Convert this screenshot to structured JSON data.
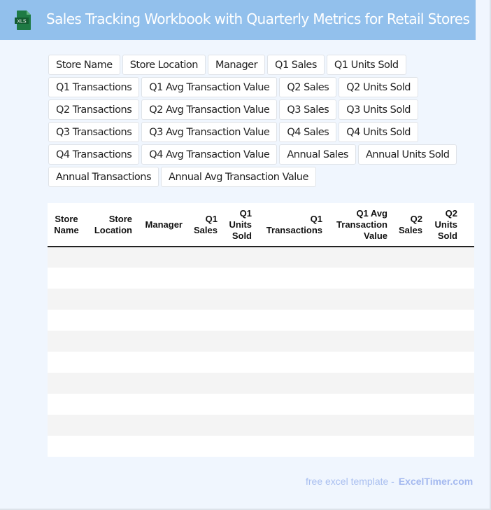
{
  "header": {
    "title": "Sales Tracking Workbook with Quarterly Metrics for Retail Stores",
    "icon": "xls-file-icon",
    "icon_label": "XLS",
    "color": "#92c0ec"
  },
  "fields": [
    "Store Name",
    "Store Location",
    "Manager",
    "Q1 Sales",
    "Q1 Units Sold",
    "Q1 Transactions",
    "Q1 Avg Transaction Value",
    "Q2 Sales",
    "Q2 Units Sold",
    "Q2 Transactions",
    "Q2 Avg Transaction Value",
    "Q3 Sales",
    "Q3 Units Sold",
    "Q3 Transactions",
    "Q3 Avg Transaction Value",
    "Q4 Sales",
    "Q4 Units Sold",
    "Q4 Transactions",
    "Q4 Avg Transaction Value",
    "Annual Sales",
    "Annual Units Sold",
    "Annual Transactions",
    "Annual Avg Transaction Value"
  ],
  "table": {
    "columns": [
      "Store Name",
      "Store Location",
      "Manager",
      "Q1 Sales",
      "Q1 Units Sold",
      "Q1 Transactions",
      "Q1 Avg Transaction Value",
      "Q2 Sales",
      "Q2 Units Sold",
      "Q2 Transactions"
    ],
    "row_count": 10
  },
  "footer": {
    "text": "free excel template -",
    "brand": "ExcelTimer.com"
  }
}
